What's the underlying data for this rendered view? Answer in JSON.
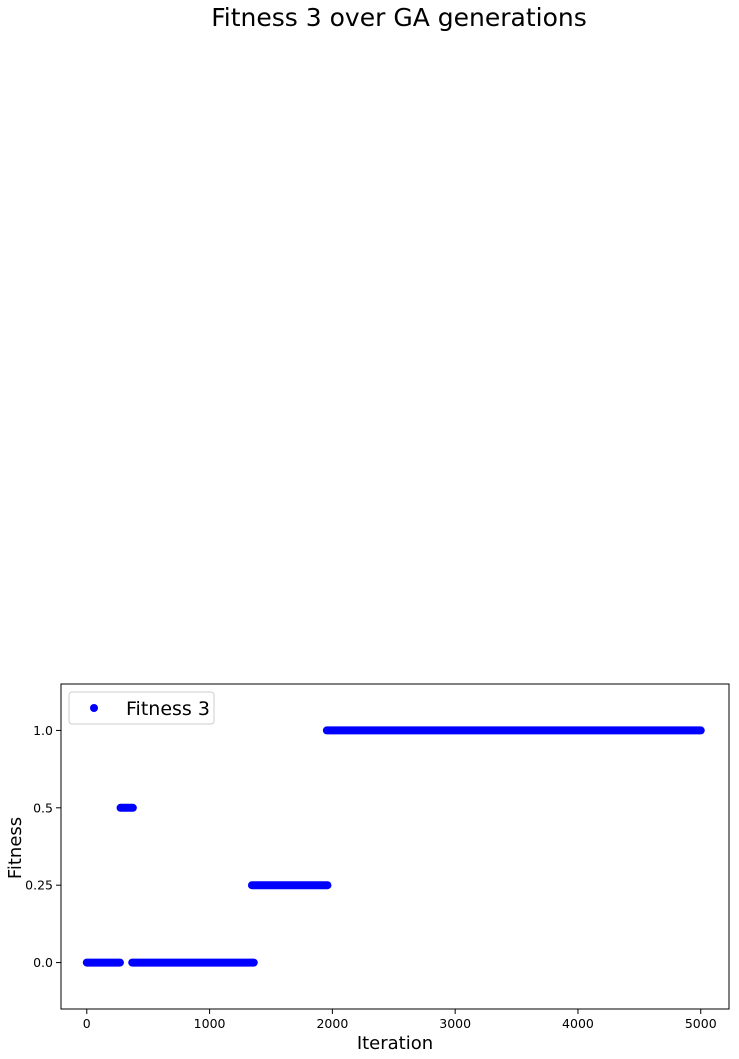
{
  "chart_data": {
    "type": "scatter",
    "title": "Fitness 3 over GA generations",
    "xlabel": "Iteration",
    "ylabel": "Fitness",
    "xlim": [
      -210,
      5230
    ],
    "ylim": [
      -0.6,
      3.6
    ],
    "x_ticks": [
      0,
      1000,
      2000,
      3000,
      4000,
      5000
    ],
    "x_tick_labels": [
      "0",
      "1000",
      "2000",
      "3000",
      "4000",
      "5000"
    ],
    "y_tick_positions": [
      0,
      1,
      2,
      3
    ],
    "y_tick_labels": [
      "0.0",
      "0.25",
      "0.5",
      "1.0"
    ],
    "legend_position": "upper-left",
    "grid": false,
    "series": [
      {
        "name": "Fitness 3",
        "color": "#0000ff",
        "marker": "circle",
        "segments": [
          {
            "x_start": 0,
            "x_end": 270,
            "y": 0
          },
          {
            "x_start": 275,
            "x_end": 375,
            "y": 2
          },
          {
            "x_start": 370,
            "x_end": 1360,
            "y": 0
          },
          {
            "x_start": 1345,
            "x_end": 1960,
            "y": 1
          },
          {
            "x_start": 1955,
            "x_end": 5000,
            "y": 3
          }
        ]
      }
    ]
  }
}
